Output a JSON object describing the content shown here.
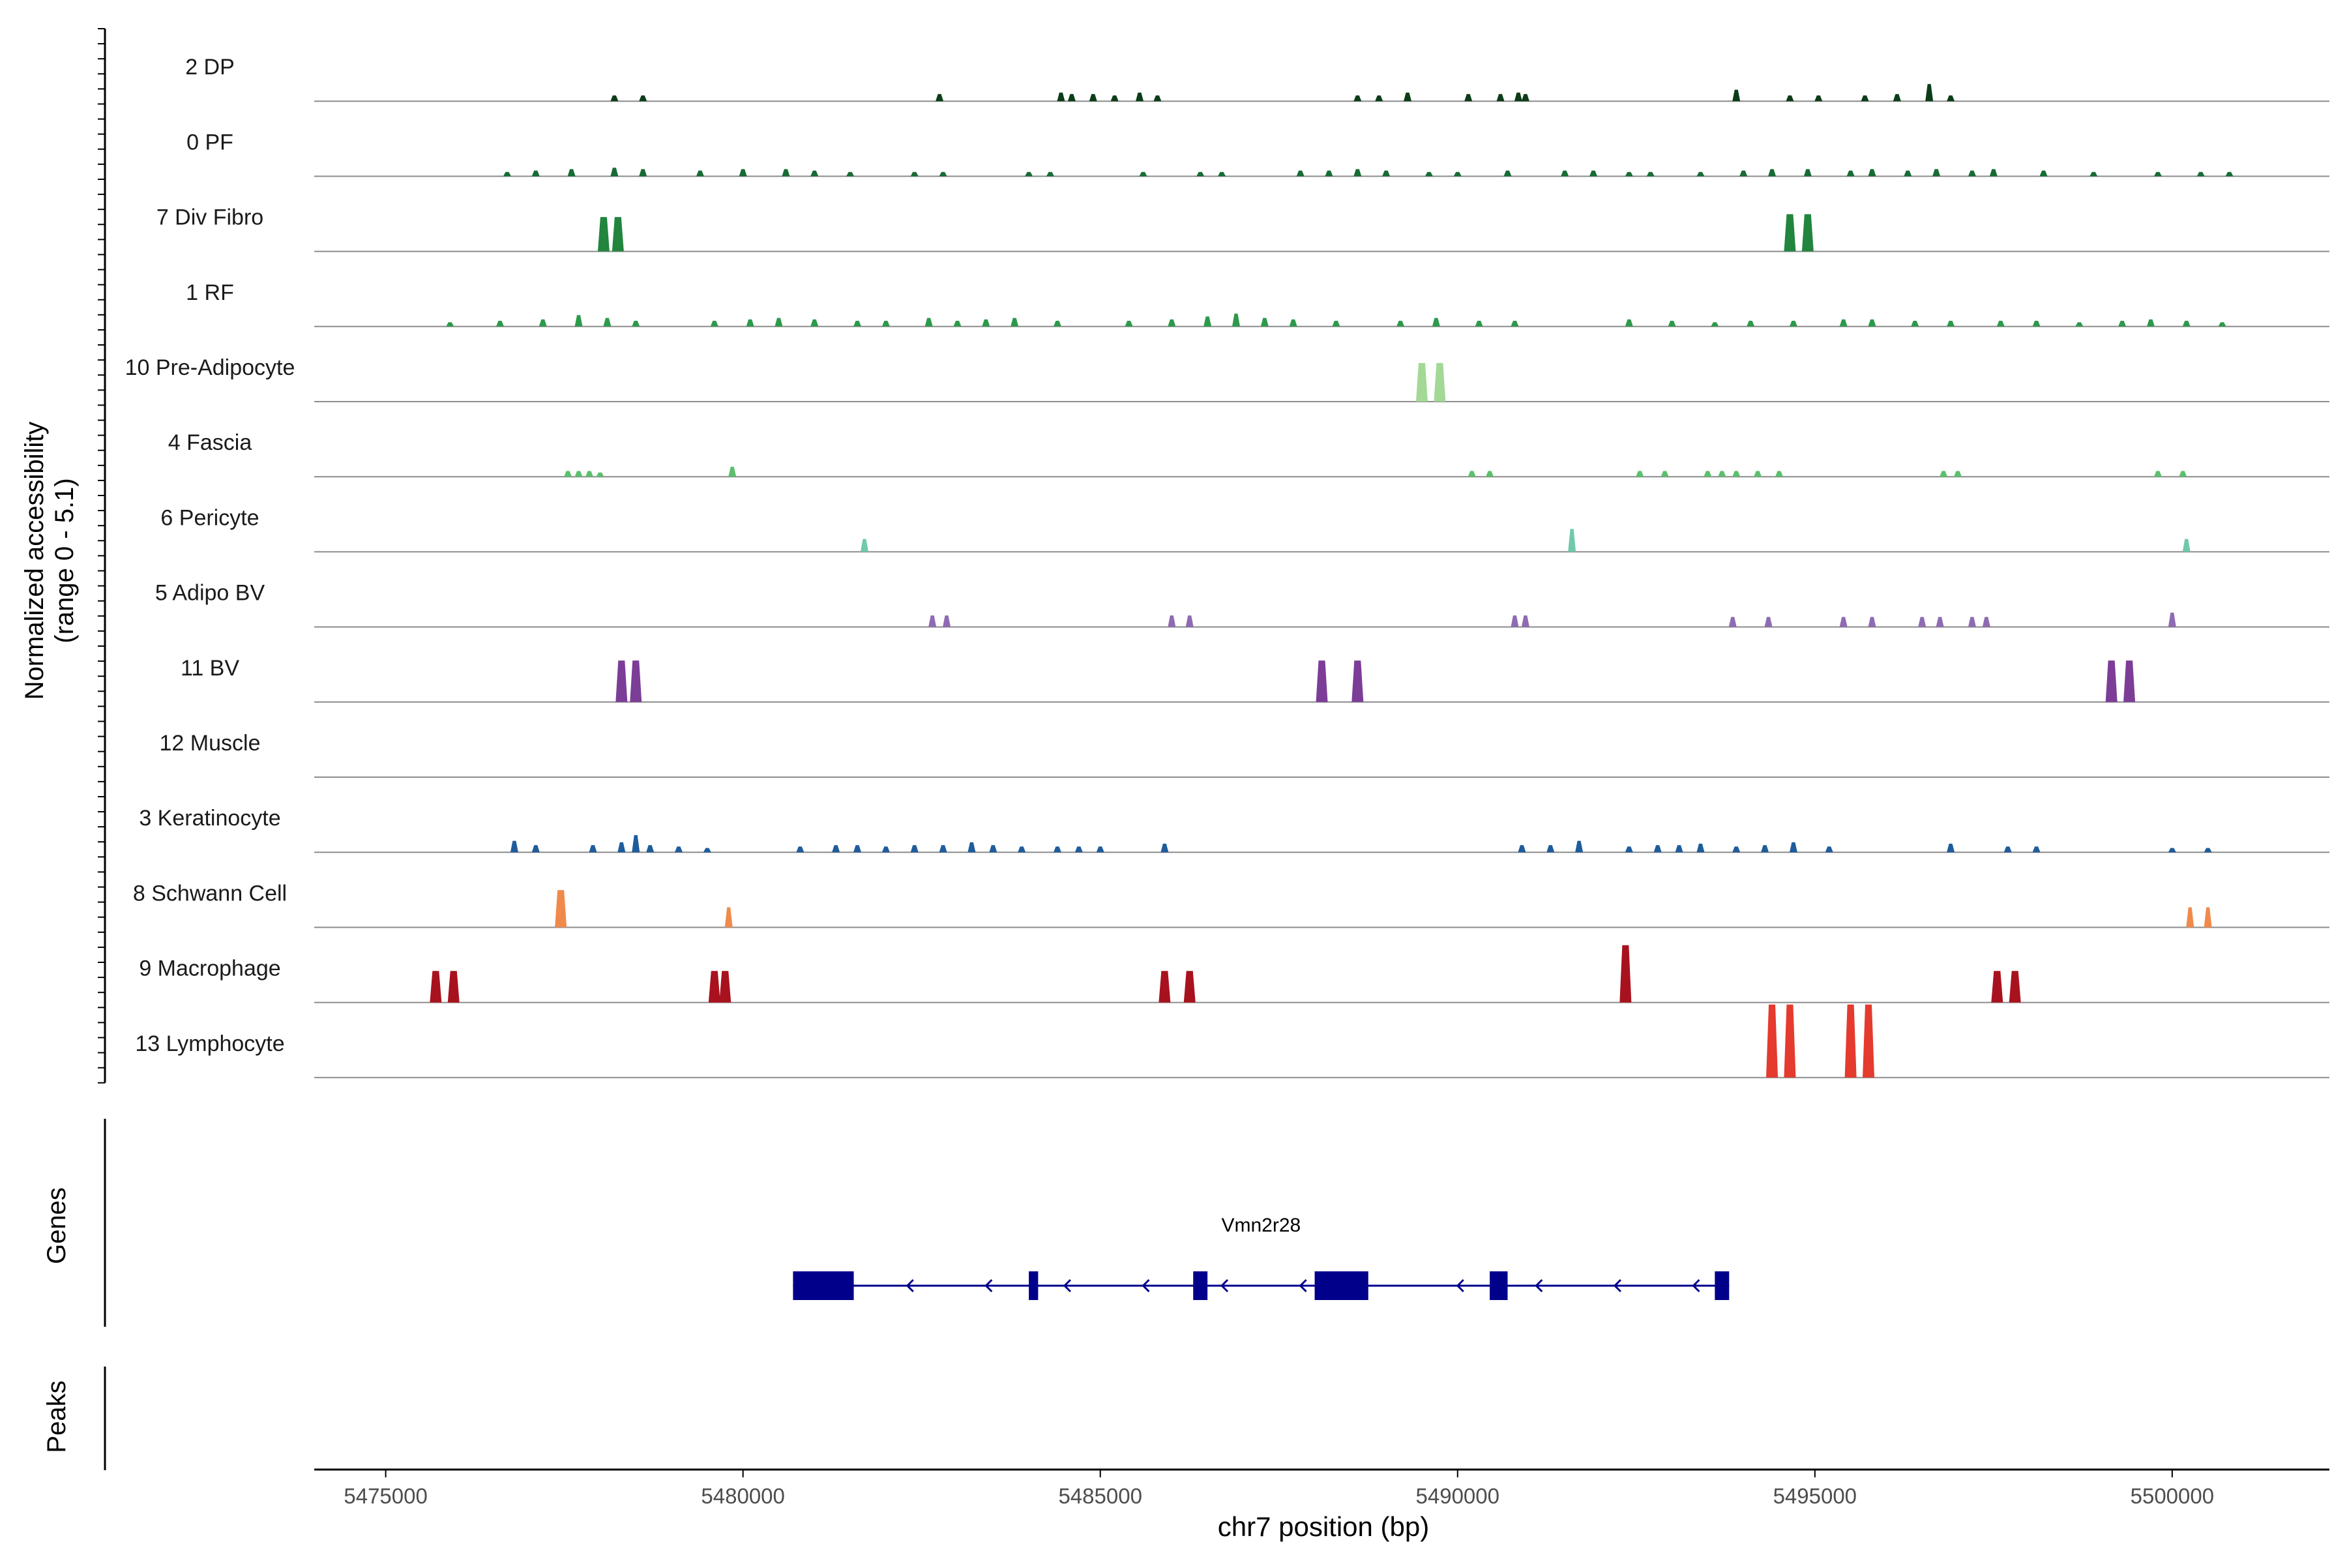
{
  "chart_data": {
    "type": "genome-browser",
    "chromosome": "chr7",
    "x_range": [
      5474000,
      5502200
    ],
    "xlabel": "chr7 position (bp)",
    "x_ticks": [
      5475000,
      5480000,
      5485000,
      5490000,
      5495000,
      5500000
    ],
    "x_tick_labels": [
      "5475000",
      "5480000",
      "5485000",
      "5490000",
      "5495000",
      "5500000"
    ],
    "ylabel_line1": "Normalized accessibility",
    "ylabel_line2": "(range 0 - 5.1)",
    "y_range": [
      0,
      5.1
    ],
    "tracks": [
      {
        "name": "2 DP",
        "color": "#0b3d18",
        "peaks": [
          [
            5478200,
            0.4
          ],
          [
            5478600,
            0.4
          ],
          [
            5482750,
            0.5
          ],
          [
            5484450,
            0.6
          ],
          [
            5484600,
            0.5
          ],
          [
            5484900,
            0.5
          ],
          [
            5485200,
            0.4
          ],
          [
            5485550,
            0.6
          ],
          [
            5485800,
            0.4
          ],
          [
            5488600,
            0.4
          ],
          [
            5488900,
            0.4
          ],
          [
            5489300,
            0.6
          ],
          [
            5490150,
            0.5
          ],
          [
            5490600,
            0.5
          ],
          [
            5490850,
            0.6
          ],
          [
            5490950,
            0.5
          ],
          [
            5493900,
            0.8
          ],
          [
            5494650,
            0.4
          ],
          [
            5495050,
            0.4
          ],
          [
            5495700,
            0.4
          ],
          [
            5496150,
            0.5
          ],
          [
            5496600,
            1.2
          ],
          [
            5496900,
            0.4
          ]
        ]
      },
      {
        "name": "0 PF",
        "color": "#176b35",
        "peaks": [
          [
            5476700,
            0.3
          ],
          [
            5477100,
            0.4
          ],
          [
            5477600,
            0.5
          ],
          [
            5478200,
            0.6
          ],
          [
            5478600,
            0.5
          ],
          [
            5479400,
            0.4
          ],
          [
            5480000,
            0.5
          ],
          [
            5480600,
            0.5
          ],
          [
            5481000,
            0.4
          ],
          [
            5481500,
            0.3
          ],
          [
            5482400,
            0.3
          ],
          [
            5482800,
            0.3
          ],
          [
            5484000,
            0.3
          ],
          [
            5484300,
            0.3
          ],
          [
            5485600,
            0.3
          ],
          [
            5486400,
            0.3
          ],
          [
            5486700,
            0.3
          ],
          [
            5487800,
            0.4
          ],
          [
            5488200,
            0.4
          ],
          [
            5488600,
            0.5
          ],
          [
            5489000,
            0.4
          ],
          [
            5489600,
            0.3
          ],
          [
            5490000,
            0.3
          ],
          [
            5490700,
            0.4
          ],
          [
            5491500,
            0.4
          ],
          [
            5491900,
            0.4
          ],
          [
            5492400,
            0.3
          ],
          [
            5492700,
            0.3
          ],
          [
            5493400,
            0.3
          ],
          [
            5494000,
            0.4
          ],
          [
            5494400,
            0.5
          ],
          [
            5494900,
            0.5
          ],
          [
            5495500,
            0.4
          ],
          [
            5495800,
            0.5
          ],
          [
            5496300,
            0.4
          ],
          [
            5496700,
            0.5
          ],
          [
            5497200,
            0.4
          ],
          [
            5497500,
            0.5
          ],
          [
            5498200,
            0.4
          ],
          [
            5498900,
            0.3
          ],
          [
            5499800,
            0.3
          ],
          [
            5500400,
            0.3
          ],
          [
            5500800,
            0.3
          ]
        ]
      },
      {
        "name": "7 Div Fibro",
        "color": "#22853e",
        "peaks": [
          [
            5478050,
            2.4
          ],
          [
            5478250,
            2.4
          ],
          [
            5494650,
            2.6
          ],
          [
            5494900,
            2.6
          ]
        ]
      },
      {
        "name": "1 RF",
        "color": "#2d9a4b",
        "peaks": [
          [
            5475900,
            0.3
          ],
          [
            5476600,
            0.4
          ],
          [
            5477200,
            0.5
          ],
          [
            5477700,
            0.8
          ],
          [
            5478100,
            0.6
          ],
          [
            5478500,
            0.4
          ],
          [
            5479600,
            0.4
          ],
          [
            5480100,
            0.5
          ],
          [
            5480500,
            0.6
          ],
          [
            5481000,
            0.5
          ],
          [
            5481600,
            0.4
          ],
          [
            5482000,
            0.4
          ],
          [
            5482600,
            0.6
          ],
          [
            5483000,
            0.4
          ],
          [
            5483400,
            0.5
          ],
          [
            5483800,
            0.6
          ],
          [
            5484400,
            0.4
          ],
          [
            5485400,
            0.4
          ],
          [
            5486000,
            0.5
          ],
          [
            5486500,
            0.7
          ],
          [
            5486900,
            0.9
          ],
          [
            5487300,
            0.6
          ],
          [
            5487700,
            0.5
          ],
          [
            5488300,
            0.4
          ],
          [
            5489200,
            0.4
          ],
          [
            5489700,
            0.6
          ],
          [
            5490300,
            0.4
          ],
          [
            5490800,
            0.4
          ],
          [
            5492400,
            0.5
          ],
          [
            5493000,
            0.4
          ],
          [
            5493600,
            0.3
          ],
          [
            5494100,
            0.4
          ],
          [
            5494700,
            0.4
          ],
          [
            5495400,
            0.5
          ],
          [
            5495800,
            0.5
          ],
          [
            5496400,
            0.4
          ],
          [
            5496900,
            0.4
          ],
          [
            5497600,
            0.4
          ],
          [
            5498100,
            0.4
          ],
          [
            5498700,
            0.3
          ],
          [
            5499300,
            0.4
          ],
          [
            5499700,
            0.5
          ],
          [
            5500200,
            0.4
          ],
          [
            5500700,
            0.3
          ]
        ]
      },
      {
        "name": "10 Pre-Adipocyte",
        "color": "#a3d896",
        "peaks": [
          [
            5489500,
            2.7
          ],
          [
            5489750,
            2.7
          ]
        ]
      },
      {
        "name": "4 Fascia",
        "color": "#5cbf6e",
        "peaks": [
          [
            5477550,
            0.4
          ],
          [
            5477700,
            0.4
          ],
          [
            5477850,
            0.4
          ],
          [
            5478000,
            0.3
          ],
          [
            5479850,
            0.7
          ],
          [
            5490200,
            0.4
          ],
          [
            5490450,
            0.4
          ],
          [
            5492550,
            0.4
          ],
          [
            5492900,
            0.4
          ],
          [
            5493500,
            0.4
          ],
          [
            5493700,
            0.4
          ],
          [
            5493900,
            0.4
          ],
          [
            5494200,
            0.4
          ],
          [
            5494500,
            0.4
          ],
          [
            5496800,
            0.4
          ],
          [
            5497000,
            0.4
          ],
          [
            5499800,
            0.4
          ],
          [
            5500150,
            0.4
          ]
        ]
      },
      {
        "name": "6 Pericyte",
        "color": "#70c9ac",
        "peaks": [
          [
            5481700,
            0.9
          ],
          [
            5491600,
            1.6
          ],
          [
            5500200,
            0.9
          ]
        ]
      },
      {
        "name": "5 Adipo BV",
        "color": "#8e6bb3",
        "peaks": [
          [
            5482650,
            0.8
          ],
          [
            5482850,
            0.8
          ],
          [
            5486000,
            0.8
          ],
          [
            5486250,
            0.8
          ],
          [
            5490800,
            0.8
          ],
          [
            5490950,
            0.8
          ],
          [
            5493850,
            0.7
          ],
          [
            5494350,
            0.7
          ],
          [
            5495400,
            0.7
          ],
          [
            5495800,
            0.7
          ],
          [
            5496500,
            0.7
          ],
          [
            5496750,
            0.7
          ],
          [
            5497200,
            0.7
          ],
          [
            5497400,
            0.7
          ],
          [
            5500000,
            1.0
          ]
        ]
      },
      {
        "name": "11 BV",
        "color": "#7c3d97",
        "peaks": [
          [
            5478300,
            2.9
          ],
          [
            5478500,
            2.9
          ],
          [
            5488100,
            2.9
          ],
          [
            5488600,
            2.9
          ],
          [
            5499150,
            2.9
          ],
          [
            5499400,
            2.9
          ]
        ]
      },
      {
        "name": "12 Muscle",
        "color": "#6c6c6c",
        "peaks": []
      },
      {
        "name": "3 Keratinocyte",
        "color": "#1f5c9c",
        "peaks": [
          [
            5476800,
            0.8
          ],
          [
            5477100,
            0.5
          ],
          [
            5477900,
            0.5
          ],
          [
            5478300,
            0.7
          ],
          [
            5478500,
            1.2
          ],
          [
            5478700,
            0.5
          ],
          [
            5479100,
            0.4
          ],
          [
            5479500,
            0.3
          ],
          [
            5480800,
            0.4
          ],
          [
            5481300,
            0.5
          ],
          [
            5481600,
            0.5
          ],
          [
            5482000,
            0.4
          ],
          [
            5482400,
            0.5
          ],
          [
            5482800,
            0.5
          ],
          [
            5483200,
            0.7
          ],
          [
            5483500,
            0.5
          ],
          [
            5483900,
            0.4
          ],
          [
            5484400,
            0.4
          ],
          [
            5484700,
            0.4
          ],
          [
            5485000,
            0.4
          ],
          [
            5485900,
            0.6
          ],
          [
            5490900,
            0.5
          ],
          [
            5491300,
            0.5
          ],
          [
            5491700,
            0.8
          ],
          [
            5492400,
            0.4
          ],
          [
            5492800,
            0.5
          ],
          [
            5493100,
            0.5
          ],
          [
            5493400,
            0.6
          ],
          [
            5493900,
            0.4
          ],
          [
            5494300,
            0.5
          ],
          [
            5494700,
            0.7
          ],
          [
            5495200,
            0.4
          ],
          [
            5496900,
            0.6
          ],
          [
            5497700,
            0.4
          ],
          [
            5498100,
            0.4
          ],
          [
            5500000,
            0.3
          ],
          [
            5500500,
            0.3
          ]
        ]
      },
      {
        "name": "8 Schwann Cell",
        "color": "#f08a4b",
        "peaks": [
          [
            5477450,
            2.6
          ],
          [
            5479800,
            1.4
          ],
          [
            5500250,
            1.4
          ],
          [
            5500500,
            1.4
          ]
        ]
      },
      {
        "name": "9 Macrophage",
        "color": "#a8121e",
        "peaks": [
          [
            5475700,
            2.2
          ],
          [
            5475950,
            2.2
          ],
          [
            5479600,
            2.2
          ],
          [
            5479750,
            2.2
          ],
          [
            5485900,
            2.2
          ],
          [
            5486250,
            2.2
          ],
          [
            5492350,
            4.0
          ],
          [
            5497550,
            2.2
          ],
          [
            5497800,
            2.2
          ]
        ]
      },
      {
        "name": "13 Lymphocyte",
        "color": "#e53a2e",
        "peaks": [
          [
            5494400,
            5.1
          ],
          [
            5494650,
            5.1
          ],
          [
            5495500,
            5.1
          ],
          [
            5495750,
            5.1
          ]
        ]
      }
    ],
    "genes_label": "Genes",
    "peaks_label": "Peaks",
    "gene": {
      "name": "Vmn2r28",
      "strand": "-",
      "start": 5480700,
      "end": 5493800,
      "exons": [
        [
          5480700,
          5481550
        ],
        [
          5484000,
          5484130
        ],
        [
          5486300,
          5486500
        ],
        [
          5488000,
          5488750
        ],
        [
          5490450,
          5490700
        ],
        [
          5493600,
          5493800
        ]
      ]
    },
    "track_label_color": "#1a1a1a",
    "baseline_color": "#8c8c8c",
    "gene_color": "#00008b"
  }
}
